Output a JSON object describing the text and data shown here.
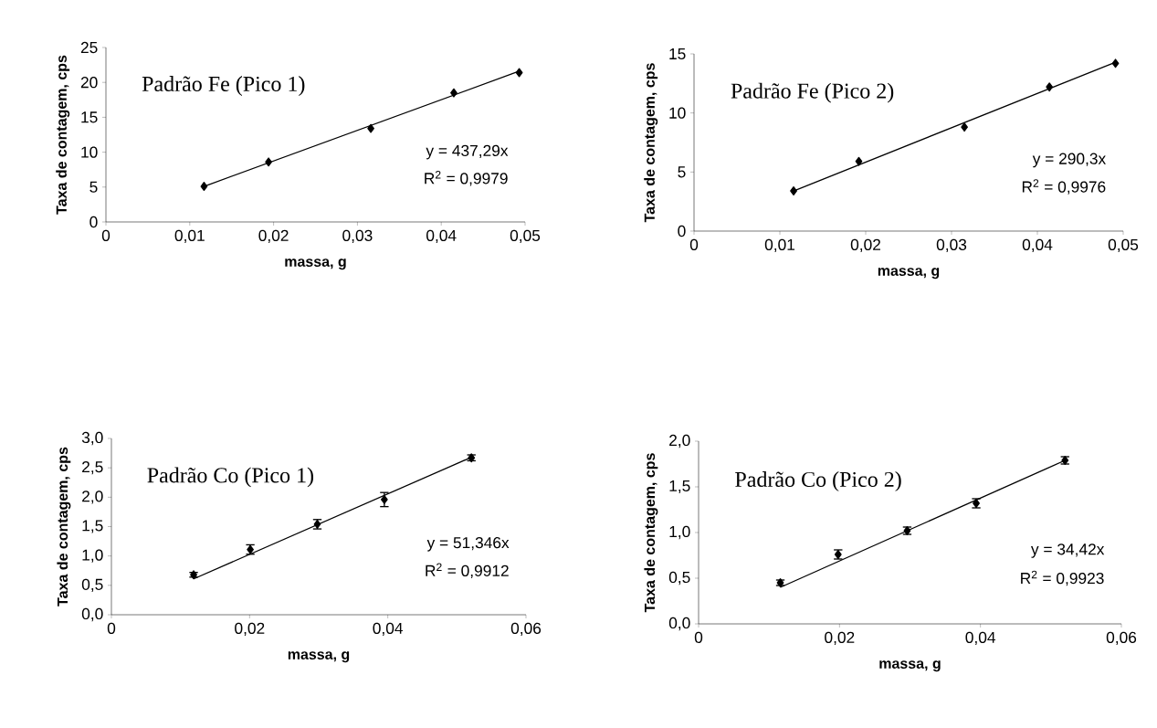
{
  "chart_data": [
    {
      "type": "scatter",
      "title": "Padrão Fe (Pico 1)",
      "xlabel": "massa, g",
      "ylabel": "Taxa de contagem, cps",
      "marker": "diamond",
      "xlim": [
        0,
        0.05
      ],
      "xticks": [
        0,
        {
          "value": 0.01,
          "label": "0,01"
        },
        {
          "value": 0.02,
          "label": "0,02"
        },
        {
          "value": 0.03,
          "label": "0,03"
        },
        {
          "value": 0.04,
          "label": "0,04"
        },
        {
          "value": 0.05,
          "label": "0,05"
        }
      ],
      "ylim": [
        0,
        25
      ],
      "yticks": [
        0,
        5,
        10,
        15,
        20,
        25
      ],
      "annotations": [
        "y = 437,29x",
        "R$^{2}$ = 0,9979"
      ],
      "series": [
        {
          "color": "#000000",
          "x": [
            0.0117,
            0.0194,
            0.0316,
            0.0415,
            0.0493
          ],
          "values": [
            5.1,
            8.6,
            13.4,
            18.5,
            21.4
          ]
        },
        {
          "type": "line",
          "color": "#000000",
          "marker": "none",
          "x": [
            0.0117,
            0.0493
          ],
          "values": [
            5.1,
            21.6
          ]
        }
      ]
    },
    {
      "type": "scatter",
      "title": "Padrão Fe (Pico 2)",
      "xlabel": "massa, g",
      "ylabel": "Taxa de contagem, cps",
      "marker": "diamond",
      "xlim": [
        0,
        0.05
      ],
      "xticks": [
        0,
        {
          "value": 0.01,
          "label": "0,01"
        },
        {
          "value": 0.02,
          "label": "0,02"
        },
        {
          "value": 0.03,
          "label": "0,03"
        },
        {
          "value": 0.04,
          "label": "0,04"
        },
        {
          "value": 0.05,
          "label": "0,05"
        }
      ],
      "ylim": [
        0,
        15
      ],
      "yticks": [
        0,
        5,
        10,
        15
      ],
      "annotations": [
        "y = 290,3x",
        "R$^{2}$ = 0,9976"
      ],
      "series": [
        {
          "color": "#000000",
          "x": [
            0.0116,
            0.0192,
            0.0315,
            0.0414,
            0.0491
          ],
          "values": [
            3.4,
            5.9,
            8.8,
            12.2,
            14.2
          ]
        },
        {
          "type": "line",
          "color": "#000000",
          "marker": "none",
          "x": [
            0.0116,
            0.0491
          ],
          "values": [
            3.4,
            14.3
          ]
        }
      ]
    },
    {
      "type": "scatter",
      "title": "Padrão Co (Pico 1)",
      "xlabel": "massa, g",
      "ylabel": "Taxa de contagem, cps",
      "marker": "diamond",
      "xlim": [
        0,
        0.06
      ],
      "xticks": [
        0,
        {
          "value": 0.02,
          "label": "0,02"
        },
        {
          "value": 0.04,
          "label": "0,04"
        },
        {
          "value": 0.06,
          "label": "0,06"
        }
      ],
      "ylim": [
        0,
        3.0
      ],
      "yticks": [
        {
          "value": 0,
          "label": "0,0"
        },
        {
          "value": 0.5,
          "label": "0,5"
        },
        {
          "value": 1.0,
          "label": "1,0"
        },
        {
          "value": 1.5,
          "label": "1,5"
        },
        {
          "value": 2.0,
          "label": "2,0"
        },
        {
          "value": 2.5,
          "label": "2,5"
        },
        {
          "value": 3.0,
          "label": "3,0"
        }
      ],
      "annotations": [
        "y = 51,346x",
        "R$^{2}$ = 0,9912"
      ],
      "series": [
        {
          "color": "#000000",
          "x": [
            0.0119,
            0.0201,
            0.0298,
            0.0395,
            0.0521
          ],
          "values": [
            0.68,
            1.11,
            1.54,
            1.96,
            2.67
          ],
          "errors": [
            0.04,
            0.08,
            0.08,
            0.12,
            0.05
          ]
        },
        {
          "type": "line",
          "color": "#000000",
          "marker": "none",
          "x": [
            0.0119,
            0.0521
          ],
          "values": [
            0.61,
            2.68
          ]
        }
      ]
    },
    {
      "type": "scatter",
      "title": "Padrão Co (Pico 2)",
      "xlabel": "massa, g",
      "ylabel": "Taxa de contagem, cps",
      "marker": "diamond",
      "xlim": [
        0,
        0.06
      ],
      "xticks": [
        0,
        {
          "value": 0.02,
          "label": "0,02"
        },
        {
          "value": 0.04,
          "label": "0,04"
        },
        {
          "value": 0.06,
          "label": "0,06"
        }
      ],
      "ylim": [
        0,
        2.0
      ],
      "yticks": [
        {
          "value": 0,
          "label": "0,0"
        },
        {
          "value": 0.5,
          "label": "0,5"
        },
        {
          "value": 1.0,
          "label": "1,0"
        },
        {
          "value": 1.5,
          "label": "1,5"
        },
        {
          "value": 2.0,
          "label": "2,0"
        }
      ],
      "annotations": [
        "y = 34,42x",
        "R$^{2}$ = 0,9923"
      ],
      "series": [
        {
          "color": "#000000",
          "x": [
            0.0116,
            0.0198,
            0.0296,
            0.0394,
            0.052
          ],
          "values": [
            0.45,
            0.76,
            1.02,
            1.32,
            1.79
          ],
          "errors": [
            0.03,
            0.05,
            0.04,
            0.05,
            0.04
          ]
        },
        {
          "type": "line",
          "color": "#000000",
          "marker": "none",
          "x": [
            0.0116,
            0.052
          ],
          "values": [
            0.4,
            1.79
          ]
        }
      ]
    }
  ]
}
